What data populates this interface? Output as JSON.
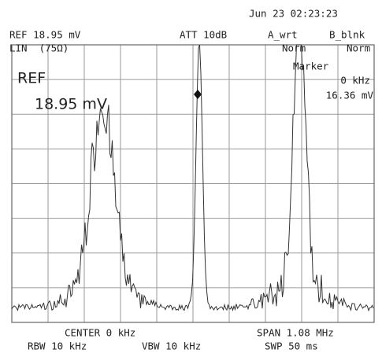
{
  "header": {
    "datetime": "Jun 23 02:23:23"
  },
  "status": {
    "ref": "REF 18.95 mV",
    "scale": "LIN  (75Ω)",
    "att": "ATT 10dB",
    "a_mode": "A_wrt",
    "b_mode": "B_blnk",
    "a_norm": "Norm",
    "b_norm": "Norm"
  },
  "marker": {
    "label": "Marker",
    "freq": "0 kHz",
    "level": "16.36 mV"
  },
  "ref_display": {
    "label": "REF",
    "value": "18.95 mV"
  },
  "footer": {
    "center": "CENTER 0 kHz",
    "span": "SPAN 1.08 MHz",
    "rbw": "RBW 10 kHz",
    "vbw": "VBW 10 kHz",
    "swp": "SWP 50 ms"
  }
}
